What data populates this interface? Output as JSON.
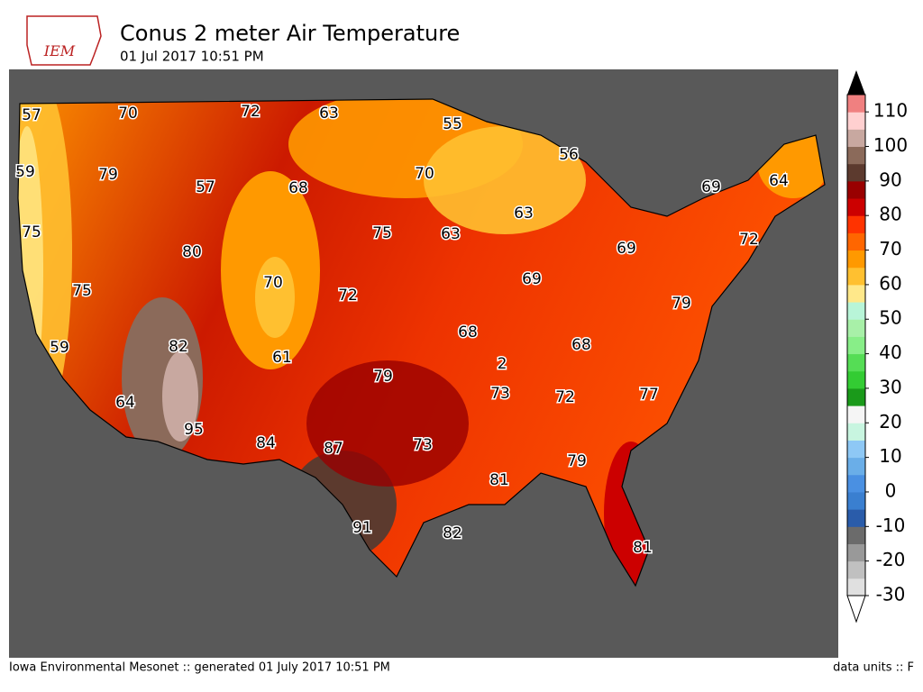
{
  "header": {
    "logo": "IEM",
    "title": "Conus 2 meter Air Temperature",
    "subtitle": "01 Jul 2017 10:51 PM"
  },
  "map": {
    "contour_labels": [
      57,
      70,
      72,
      63,
      55,
      56,
      59,
      79,
      57,
      68,
      70,
      69,
      64,
      63,
      75,
      75,
      63,
      72,
      80,
      69,
      70,
      75,
      72,
      69,
      79,
      82,
      68,
      68,
      59,
      61,
      79,
      2,
      73,
      72,
      77,
      64,
      95,
      84,
      87,
      73,
      81,
      79,
      91,
      82,
      81
    ]
  },
  "colorbar": {
    "range": [
      -30,
      115
    ],
    "ticks": [
      -30,
      -20,
      -10,
      0,
      10,
      20,
      30,
      40,
      50,
      60,
      70,
      80,
      90,
      100,
      110
    ],
    "colors": [
      "#e0e0e0",
      "#c0c0c0",
      "#999999",
      "#6b6b6b",
      "#2a5caa",
      "#3a7fd0",
      "#4a90e2",
      "#6aaee8",
      "#8ec8f5",
      "#c8f5e0",
      "#f5f5f5",
      "#1a9a1a",
      "#33cc33",
      "#55dd55",
      "#88ee88",
      "#a8f0a8",
      "#b8f5d8",
      "#ffe88a",
      "#ffc030",
      "#ff9900",
      "#ff6600",
      "#ff3300",
      "#cc0000",
      "#990000",
      "#5c3a2e",
      "#8b6a5a",
      "#c8a8a0",
      "#ffd0d0",
      "#f08080"
    ]
  },
  "footer": {
    "left": "Iowa Environmental Mesonet :: generated 01 July 2017 10:51 PM",
    "right": "data units :: F"
  }
}
